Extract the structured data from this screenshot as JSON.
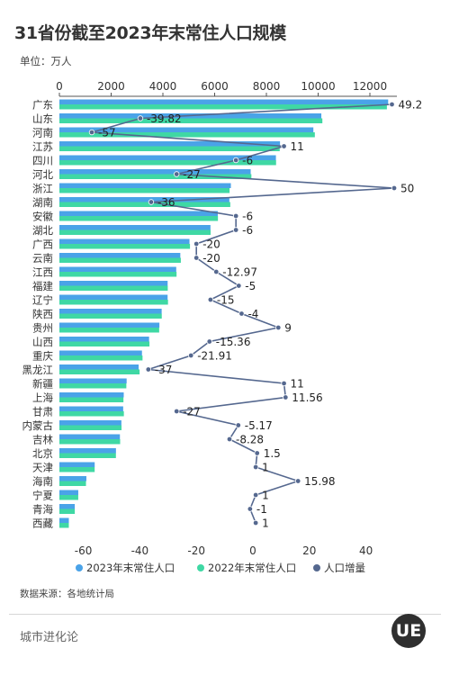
{
  "title": "31省份截至2023年末常住人口规模",
  "unit_label": "单位：万人",
  "source": "数据来源：各地统计局",
  "brand": "城市进化论",
  "logo_text": "UE",
  "colors": {
    "series_2023": "#4aa3e8",
    "series_2022": "#3fd8a4",
    "series_growth": "#55688f"
  },
  "chart_data": {
    "type": "bar",
    "orientation": "horizontal",
    "categories": [
      "广东",
      "山东",
      "河南",
      "江苏",
      "四川",
      "河北",
      "浙江",
      "湖南",
      "安徽",
      "湖北",
      "广西",
      "云南",
      "江西",
      "福建",
      "辽宁",
      "陕西",
      "贵州",
      "山西",
      "重庆",
      "黑龙江",
      "新疆",
      "上海",
      "甘肃",
      "内蒙古",
      "吉林",
      "北京",
      "天津",
      "海南",
      "宁夏",
      "青海",
      "西藏"
    ],
    "series": [
      {
        "name": "2023年末常住人口",
        "type": "bar",
        "axis": "top",
        "values": [
          12706,
          10123,
          9815,
          8526,
          8368,
          7393,
          6627,
          6568,
          6121,
          5838,
          5027,
          4673,
          4515,
          4183,
          4182,
          3952,
          3865,
          3466,
          3191,
          3062,
          2598,
          2487,
          2465,
          2396,
          2339,
          2186,
          1364,
          1043,
          729,
          594,
          365
        ]
      },
      {
        "name": "2022年末常住人口",
        "type": "bar",
        "axis": "top",
        "values": [
          12657,
          10163,
          9872,
          8515,
          8374,
          7420,
          6577,
          6604,
          6127,
          5844,
          5047,
          4693,
          4528,
          4188,
          4197,
          3956,
          3856,
          3481,
          3213,
          3099,
          2587,
          2475,
          2492,
          2401,
          2348,
          2184,
          1363,
          1027,
          728,
          595,
          364
        ]
      },
      {
        "name": "人口增量",
        "type": "line",
        "axis": "bottom",
        "values": [
          49.2,
          -39.82,
          -57,
          11,
          -6,
          -27,
          50,
          -36,
          -6,
          -6,
          -20,
          -20,
          -12.97,
          -5,
          -15,
          -4,
          9,
          -15.36,
          -21.91,
          -37,
          11,
          11.56,
          -27,
          -5.17,
          -8.28,
          1.5,
          1,
          15.98,
          1,
          -1,
          1
        ]
      }
    ],
    "top_axis": {
      "range": [
        0,
        13000
      ],
      "ticks": [
        0,
        2000,
        4000,
        6000,
        8000,
        10000,
        12000
      ]
    },
    "bottom_axis": {
      "range": [
        -70,
        50
      ],
      "ticks": [
        -60,
        -40,
        -20,
        0,
        20,
        40
      ]
    },
    "legend_position": "bottom",
    "grid": false
  }
}
